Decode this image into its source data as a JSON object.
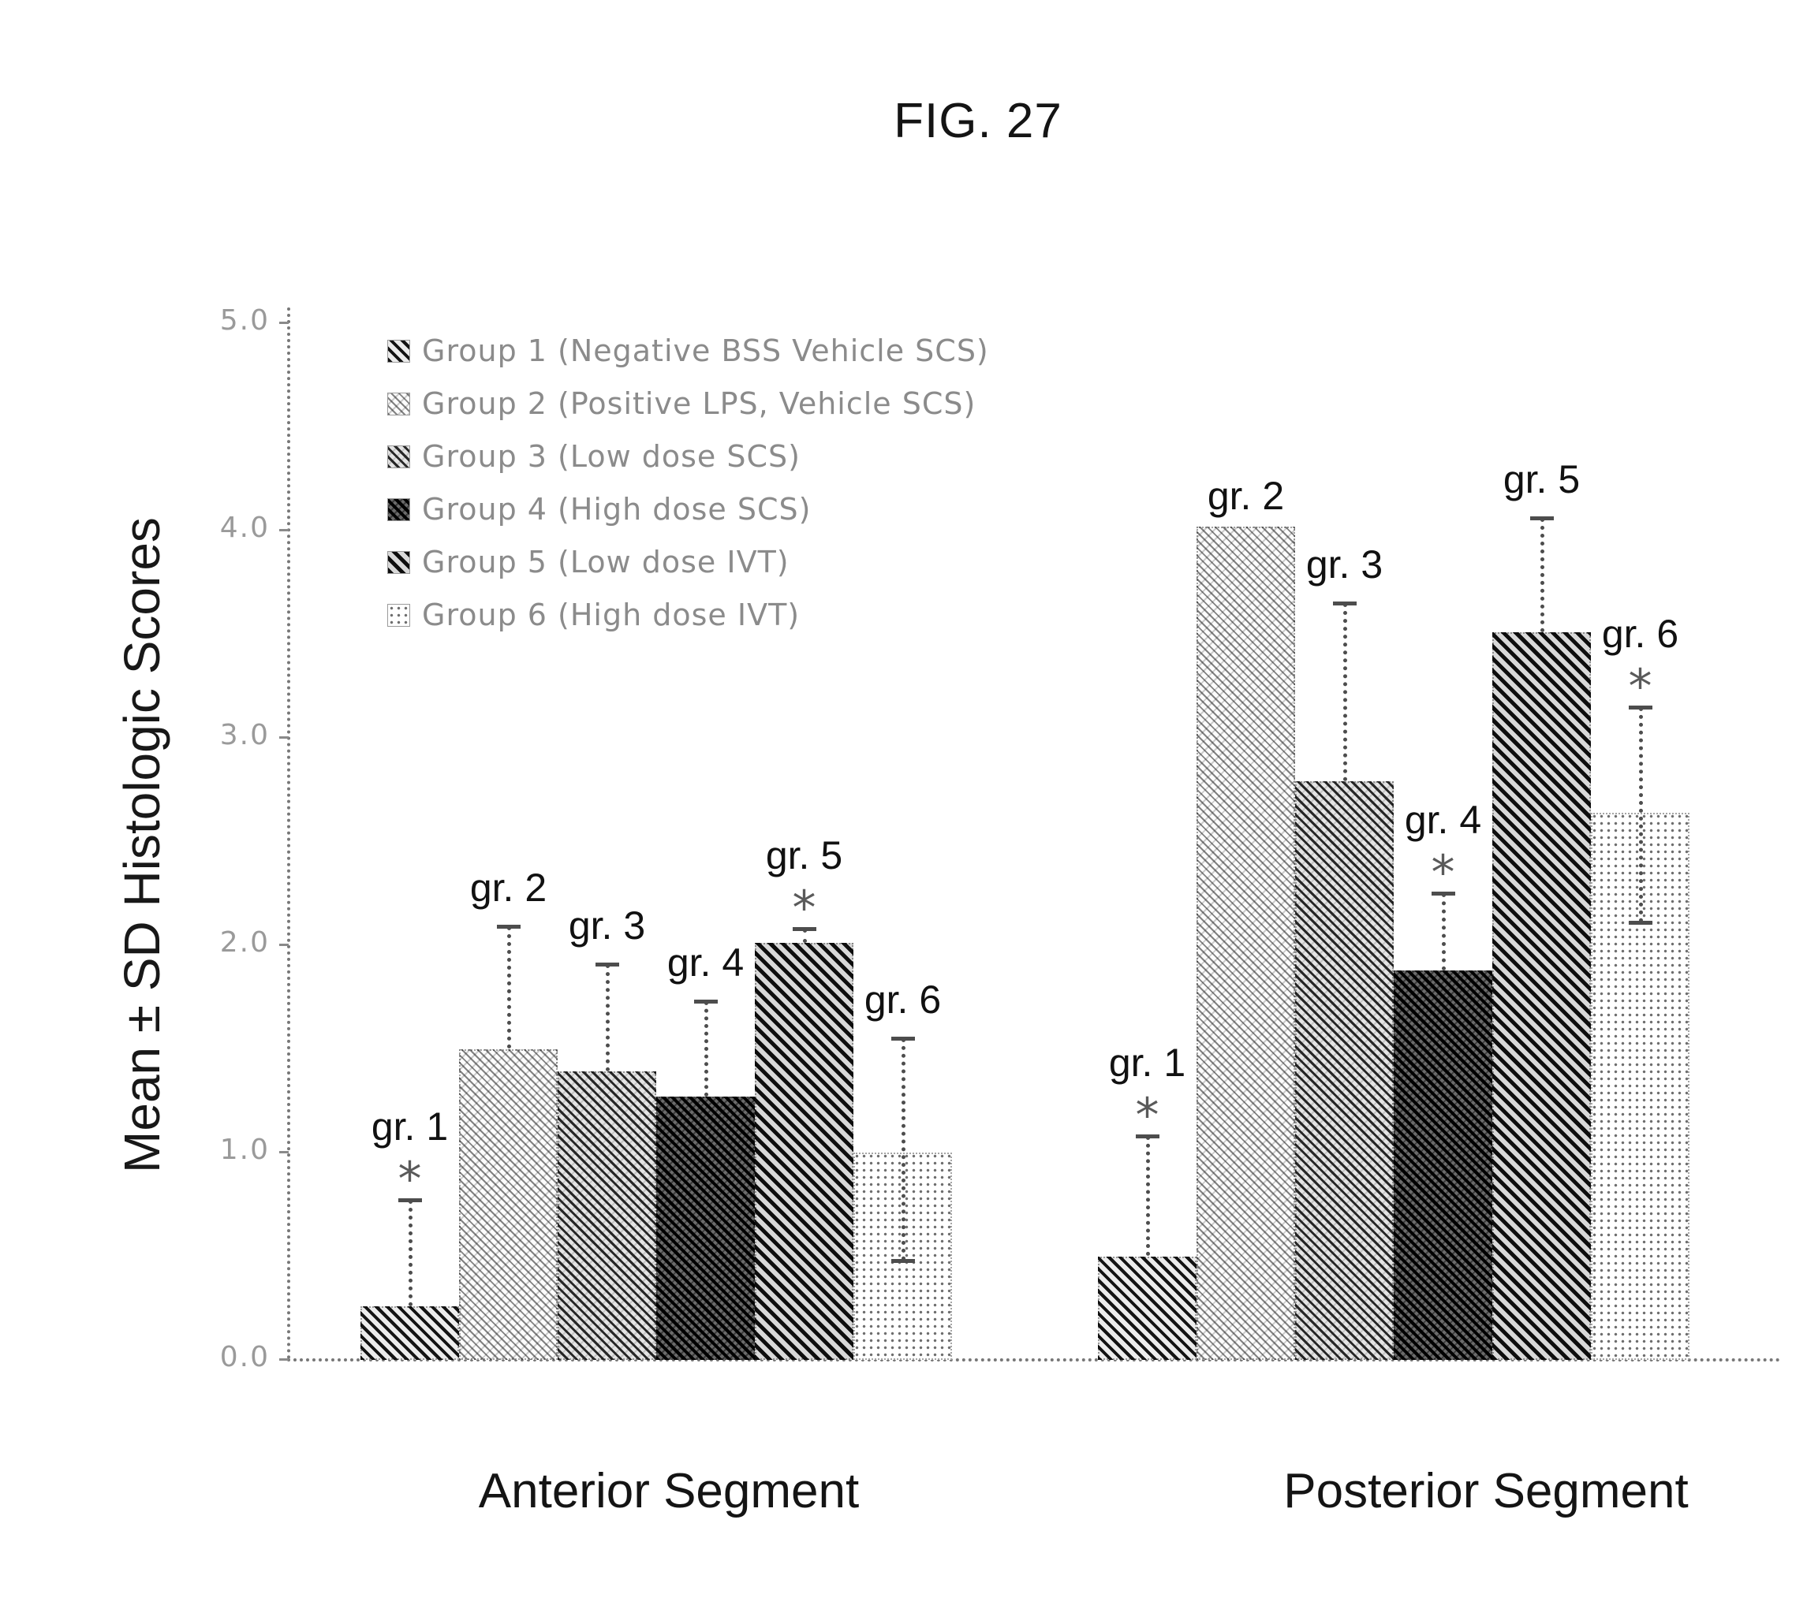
{
  "figure": {
    "title": "FIG. 27"
  },
  "chart_data": {
    "type": "bar",
    "title": "FIG. 27",
    "ylabel": "Mean ± SD Histologic Scores",
    "xlabel": "",
    "ylim": [
      0,
      5
    ],
    "yticks": [
      "5.0",
      "4.0",
      "3.0",
      "2.0",
      "1.0",
      "0.0"
    ],
    "grid": false,
    "legend_position": "upper-left",
    "asterisk_symbol": "*",
    "categories": [
      "Anterior Segment",
      "Posterior Segment"
    ],
    "legend": [
      "Group 1 (Negative BSS Vehicle SCS)",
      "Group 2 (Positive LPS, Vehicle SCS)",
      "Group 3 (Low dose SCS)",
      "Group 4 (High dose SCS)",
      "Group 5 (Low dose IVT)",
      "Group 6 (High dose IVT)"
    ],
    "series": [
      {
        "name": "Group 1 (Negative BSS Vehicle SCS)",
        "bar_label": "gr. 1",
        "values": [
          0.26,
          0.5
        ],
        "err_top": [
          0.77,
          1.08
        ],
        "err_bottom": [
          null,
          null
        ],
        "asterisk": [
          true,
          true
        ]
      },
      {
        "name": "Group 2 (Positive LPS, Vehicle SCS)",
        "bar_label": "gr. 2",
        "values": [
          1.5,
          4.02
        ],
        "err_top": [
          2.09,
          null
        ],
        "err_bottom": [
          null,
          null
        ],
        "asterisk": [
          false,
          false
        ]
      },
      {
        "name": "Group 3 (Low dose SCS)",
        "bar_label": "gr. 3",
        "values": [
          1.39,
          2.79
        ],
        "err_top": [
          1.91,
          3.65
        ],
        "err_bottom": [
          null,
          null
        ],
        "asterisk": [
          false,
          false
        ]
      },
      {
        "name": "Group 4 (High dose SCS)",
        "bar_label": "gr. 4",
        "values": [
          1.27,
          1.88
        ],
        "err_top": [
          1.73,
          2.25
        ],
        "err_bottom": [
          null,
          null
        ],
        "asterisk": [
          false,
          true
        ]
      },
      {
        "name": "Group 5 (Low dose IVT)",
        "bar_label": "gr. 5",
        "values": [
          2.01,
          3.51
        ],
        "err_top": [
          2.08,
          4.06
        ],
        "err_bottom": [
          null,
          null
        ],
        "asterisk": [
          true,
          false
        ]
      },
      {
        "name": "Group 6 (High dose IVT)",
        "bar_label": "gr. 6",
        "values": [
          1.0,
          2.64
        ],
        "err_top": [
          1.55,
          3.15
        ],
        "err_bottom": [
          0.48,
          2.11
        ],
        "asterisk": [
          false,
          true
        ]
      }
    ],
    "ink_color": "#1a1a1a",
    "muted_color": "#8b8b8b"
  }
}
